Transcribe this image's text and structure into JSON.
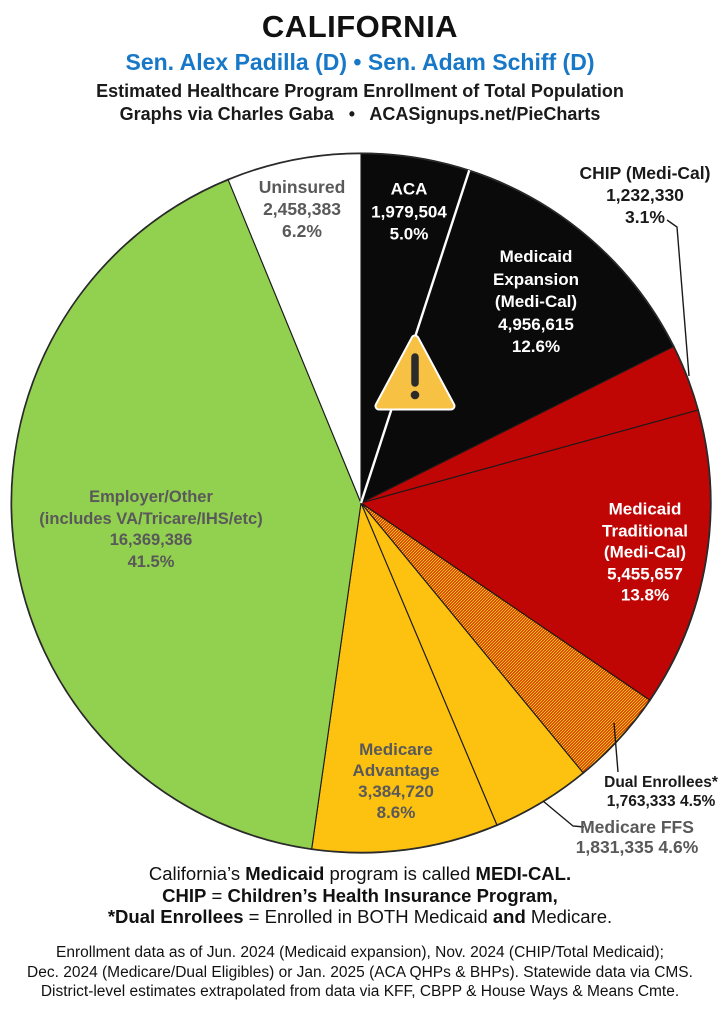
{
  "header": {
    "state": "CALIFORNIA",
    "senators": "Sen. Alex Padilla (D) • Sen. Adam Schiff (D)",
    "subtitle": "Estimated Healthcare Program Enrollment of Total Population",
    "credit": "Graphs via Charles Gaba   •   ACASignups.net/PieCharts"
  },
  "colors": {
    "black_slice": "#0A0A0A",
    "red_slice": "#C00505",
    "gold_slice": "#FDC110",
    "green_slice": "#92D050",
    "white_slice": "#FFFFFF",
    "gray_label": "#595959",
    "senators_blue": "#1878C8",
    "warning_amber": "#F7C244",
    "outline": "#1A1A1A"
  },
  "chart_data": {
    "type": "pie",
    "title": "Estimated Healthcare Program Enrollment of Total Population",
    "subtitle": "California — Sen. Alex Padilla (D) • Sen. Adam Schiff (D)",
    "direction": "clockwise",
    "start_angle_deg": 0,
    "value_unit": "people enrolled",
    "percent_unit": "share of total population",
    "slices": [
      {
        "id": "aca",
        "name": "ACA",
        "value": 1979504,
        "percent": 5.0,
        "color": "#0A0A0A",
        "label_lines": [
          "ACA",
          "1,979,504",
          "5.0%"
        ]
      },
      {
        "id": "medicaid_expansion",
        "name": "Medicaid Expansion (Medi-Cal)",
        "value": 4956615,
        "percent": 12.6,
        "color": "#0A0A0A",
        "label_lines": [
          "Medicaid",
          "Expansion",
          "(Medi-Cal)",
          "4,956,615",
          "12.6%"
        ]
      },
      {
        "id": "chip",
        "name": "CHIP (Medi-Cal)",
        "value": 1232330,
        "percent": 3.1,
        "color": "#C00505",
        "label_lines": [
          "CHIP (Medi-Cal)",
          "1,232,330",
          "3.1%"
        ]
      },
      {
        "id": "medicaid_traditional",
        "name": "Medicaid Traditional (Medi-Cal)",
        "value": 5455657,
        "percent": 13.8,
        "color": "#C00505",
        "label_lines": [
          "Medicaid",
          "Traditional",
          "(Medi-Cal)",
          "5,455,657",
          "13.8%"
        ]
      },
      {
        "id": "dual",
        "name": "Dual Enrollees*",
        "value": 1763333,
        "percent": 4.5,
        "color": "#C00505",
        "pattern": "hatch",
        "label_lines": [
          "Dual Enrollees*",
          "1,763,333 4.5%"
        ]
      },
      {
        "id": "medicare_ffs",
        "name": "Medicare FFS",
        "value": 1831335,
        "percent": 4.6,
        "color": "#FDC110",
        "label_lines": [
          "Medicare FFS",
          "1,831,335 4.6%"
        ]
      },
      {
        "id": "medicare_advantage",
        "name": "Medicare Advantage",
        "value": 3384720,
        "percent": 8.6,
        "color": "#FDC110",
        "label_lines": [
          "Medicare",
          "Advantage",
          "3,384,720",
          "8.6%"
        ]
      },
      {
        "id": "employer",
        "name": "Employer/Other (includes VA/Tricare/IHS/etc)",
        "value": 16369386,
        "percent": 41.5,
        "color": "#92D050",
        "label_lines": [
          "Employer/Other",
          "(includes VA/Tricare/IHS/etc)",
          "16,369,386",
          "41.5%"
        ]
      },
      {
        "id": "uninsured",
        "name": "Uninsured",
        "value": 2458383,
        "percent": 6.2,
        "color": "#FFFFFF",
        "label_lines": [
          "Uninsured",
          "2,458,383",
          "6.2%"
        ]
      }
    ]
  },
  "legend": {
    "lines": [
      [
        {
          "t": "California’s ",
          "b": false
        },
        {
          "t": "Medicaid",
          "b": true
        },
        {
          "t": " program is called ",
          "b": false
        },
        {
          "t": "MEDI-CAL.",
          "b": true
        }
      ],
      [
        {
          "t": "CHIP",
          "b": true
        },
        {
          "t": " = ",
          "b": false
        },
        {
          "t": "Children’s Health Insurance Program,",
          "b": true
        }
      ],
      [
        {
          "t": "*Dual Enrollees",
          "b": true
        },
        {
          "t": " = Enrolled in BOTH Medicaid ",
          "b": false
        },
        {
          "t": "and",
          "b": true
        },
        {
          "t": " Medicare.",
          "b": false
        }
      ]
    ]
  },
  "footnotes": [
    "Enrollment data as of Jun. 2024 (Medicaid expansion), Nov. 2024 (CHIP/Total Medicaid);",
    "Dec. 2024 (Medicare/Dual Eligibles) or Jan. 2025 (ACA QHPs & BHPs). Statewide data via CMS.",
    "District-level estimates extrapolated from data via KFF, CBPP & House Ways & Means Cmte."
  ]
}
